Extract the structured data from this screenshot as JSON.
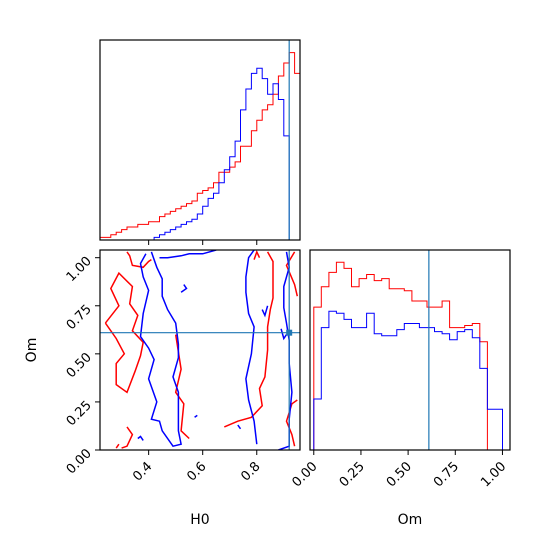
{
  "chart_data": [
    {
      "type": "histogram",
      "panel": "H0 marginal",
      "xlim": [
        0.22,
        0.96
      ],
      "bin_edges": [
        0.22,
        0.24,
        0.26,
        0.28,
        0.3,
        0.32,
        0.34,
        0.36,
        0.38,
        0.4,
        0.42,
        0.44,
        0.46,
        0.48,
        0.5,
        0.52,
        0.54,
        0.56,
        0.58,
        0.6,
        0.62,
        0.64,
        0.66,
        0.68,
        0.7,
        0.72,
        0.74,
        0.76,
        0.78,
        0.8,
        0.82,
        0.84,
        0.86,
        0.88,
        0.9,
        0.92,
        0.94,
        0.96
      ],
      "series": [
        {
          "color": "#ff0000",
          "values": [
            1,
            1,
            2,
            3,
            4,
            5,
            5,
            6,
            6,
            7,
            7,
            9,
            10,
            11,
            12,
            13,
            14,
            15,
            18,
            19,
            20,
            22,
            26,
            26,
            28,
            30,
            36,
            36,
            42,
            46,
            50,
            52,
            56,
            63,
            68,
            72,
            64
          ]
        },
        {
          "color": "#0000ff",
          "values": [
            0,
            0,
            0,
            0,
            0,
            0,
            0,
            0,
            0,
            0,
            1,
            2,
            3,
            4,
            5,
            6,
            7,
            8,
            10,
            13,
            16,
            18,
            22,
            27,
            32,
            38,
            50,
            58,
            64,
            66,
            62,
            56,
            60,
            54,
            40,
            0,
            0
          ]
        }
      ],
      "truth_line": 0.92
    },
    {
      "type": "contour",
      "panel": "H0 vs Om",
      "xlabel": "H0",
      "ylabel": "Om",
      "xlim": [
        0.22,
        0.96
      ],
      "ylim": [
        0.0,
        1.04
      ],
      "xticks": [
        "0.4",
        "0.6",
        "0.8"
      ],
      "yticks": [
        "0.00",
        "0.25",
        "0.50",
        "0.75",
        "1.00"
      ],
      "truth": [
        0.92,
        0.61
      ],
      "series": [
        {
          "color": "#ff0000",
          "contours": [
            [
              [
                0.32,
                1.03
              ],
              [
                0.33,
                1.01
              ],
              [
                0.34,
                0.96
              ],
              [
                0.38,
                0.95
              ],
              [
                0.4,
                0.98
              ],
              [
                0.41,
                0.99
              ]
            ],
            [
              [
                0.24,
                0.66
              ],
              [
                0.29,
                0.75
              ],
              [
                0.26,
                0.84
              ],
              [
                0.29,
                0.92
              ],
              [
                0.34,
                0.85
              ],
              [
                0.33,
                0.76
              ],
              [
                0.36,
                0.7
              ],
              [
                0.34,
                0.62
              ],
              [
                0.38,
                0.56
              ],
              [
                0.37,
                0.49
              ],
              [
                0.35,
                0.41
              ],
              [
                0.32,
                0.3
              ],
              [
                0.28,
                0.34
              ],
              [
                0.28,
                0.45
              ],
              [
                0.31,
                0.5
              ],
              [
                0.28,
                0.58
              ],
              [
                0.24,
                0.66
              ]
            ],
            [
              [
                0.32,
                0.12
              ],
              [
                0.34,
                0.08
              ],
              [
                0.32,
                0.02
              ],
              [
                0.3,
                0.01
              ]
            ],
            [
              [
                0.5,
                0.6
              ],
              [
                0.52,
                0.42
              ],
              [
                0.5,
                0.3
              ],
              [
                0.53,
                0.24
              ],
              [
                0.52,
                0.1
              ],
              [
                0.55,
                0.06
              ]
            ],
            [
              [
                0.68,
                0.12
              ],
              [
                0.73,
                0.15
              ],
              [
                0.78,
                0.17
              ],
              [
                0.82,
                0.23
              ],
              [
                0.81,
                0.32
              ],
              [
                0.83,
                0.38
              ],
              [
                0.84,
                0.52
              ],
              [
                0.84,
                0.64
              ],
              [
                0.85,
                0.73
              ],
              [
                0.86,
                0.79
              ],
              [
                0.86,
                0.88
              ],
              [
                0.86,
                0.98
              ],
              [
                0.84,
                1.03
              ]
            ],
            [
              [
                0.79,
                0.99
              ],
              [
                0.8,
                1.03
              ],
              [
                0.81,
                1.0
              ]
            ],
            [
              [
                0.94,
                1.03
              ],
              [
                0.91,
                0.96
              ],
              [
                0.94,
                0.86
              ],
              [
                0.95,
                0.8
              ]
            ],
            [
              [
                0.95,
                0.26
              ],
              [
                0.93,
                0.24
              ],
              [
                0.91,
                0.15
              ],
              [
                0.93,
                0.08
              ],
              [
                0.94,
                0.02
              ]
            ],
            [
              [
                0.28,
                0.01
              ],
              [
                0.29,
                0.03
              ]
            ]
          ]
        },
        {
          "color": "#0000ff",
          "contours": [
            [
              [
                0.41,
                1.03
              ],
              [
                0.43,
                0.95
              ],
              [
                0.45,
                0.89
              ],
              [
                0.45,
                0.8
              ],
              [
                0.47,
                0.73
              ],
              [
                0.5,
                0.66
              ],
              [
                0.51,
                0.55
              ],
              [
                0.51,
                0.48
              ],
              [
                0.49,
                0.38
              ],
              [
                0.51,
                0.3
              ],
              [
                0.51,
                0.18
              ],
              [
                0.51,
                0.1
              ],
              [
                0.52,
                0.03
              ],
              [
                0.49,
                0.02
              ],
              [
                0.45,
                0.1
              ],
              [
                0.44,
                0.15
              ],
              [
                0.41,
                0.16
              ],
              [
                0.43,
                0.25
              ],
              [
                0.4,
                0.37
              ],
              [
                0.42,
                0.47
              ],
              [
                0.4,
                0.53
              ],
              [
                0.37,
                0.59
              ],
              [
                0.38,
                0.71
              ],
              [
                0.4,
                0.83
              ],
              [
                0.38,
                0.9
              ],
              [
                0.37,
                0.97
              ],
              [
                0.39,
                1.02
              ]
            ],
            [
              [
                0.44,
                1.0
              ],
              [
                0.47,
                1.0
              ],
              [
                0.52,
                1.01
              ],
              [
                0.55,
                1.02
              ],
              [
                0.6,
                1.02
              ],
              [
                0.65,
                1.04
              ]
            ],
            [
              [
                0.52,
                0.82
              ],
              [
                0.54,
                0.84
              ],
              [
                0.53,
                0.86
              ]
            ],
            [
              [
                0.36,
                0.06
              ],
              [
                0.37,
                0.07
              ],
              [
                0.38,
                0.05
              ]
            ],
            [
              [
                0.57,
                0.17
              ],
              [
                0.58,
                0.18
              ]
            ],
            [
              [
                0.8,
                0.03
              ],
              [
                0.79,
                0.15
              ],
              [
                0.77,
                0.26
              ],
              [
                0.76,
                0.37
              ],
              [
                0.78,
                0.5
              ],
              [
                0.79,
                0.64
              ],
              [
                0.77,
                0.71
              ],
              [
                0.76,
                0.82
              ],
              [
                0.76,
                0.9
              ],
              [
                0.77,
                1.0
              ],
              [
                0.79,
                1.04
              ]
            ],
            [
              [
                0.91,
                1.03
              ],
              [
                0.92,
                0.95
              ],
              [
                0.9,
                0.85
              ],
              [
                0.9,
                0.74
              ],
              [
                0.91,
                0.66
              ],
              [
                0.92,
                0.57
              ],
              [
                0.92,
                0.45
              ],
              [
                0.93,
                0.3
              ],
              [
                0.92,
                0.16
              ],
              [
                0.92,
                0.02
              ],
              [
                0.88,
                0.0
              ]
            ],
            [
              [
                0.82,
                0.73
              ],
              [
                0.83,
                0.7
              ],
              [
                0.84,
                0.75
              ]
            ],
            [
              [
                0.89,
                0.63
              ],
              [
                0.9,
                0.58
              ],
              [
                0.91,
                0.6
              ]
            ],
            [
              [
                0.73,
                0.13
              ],
              [
                0.74,
                0.11
              ]
            ]
          ]
        }
      ]
    },
    {
      "type": "histogram",
      "panel": "Om marginal",
      "xlabel": "Om",
      "xlim": [
        -0.02,
        1.04
      ],
      "xticks": [
        "0.00",
        "0.25",
        "0.50",
        "0.75",
        "1.00"
      ],
      "bin_edges": [
        0.0,
        0.04,
        0.08,
        0.12,
        0.16,
        0.2,
        0.24,
        0.28,
        0.32,
        0.36,
        0.4,
        0.44,
        0.48,
        0.52,
        0.56,
        0.6,
        0.64,
        0.68,
        0.72,
        0.76,
        0.8,
        0.84,
        0.88,
        0.92,
        0.96,
        1.0
      ],
      "series": [
        {
          "color": "#ff0000",
          "values": [
            70,
            80,
            87,
            92,
            89,
            80,
            84,
            86,
            83,
            84,
            79,
            79,
            78,
            73,
            73,
            70,
            70,
            73,
            60,
            60,
            61,
            62,
            53,
            0,
            0
          ]
        },
        {
          "color": "#0000ff",
          "values": [
            25,
            60,
            68,
            67,
            64,
            60,
            60,
            67,
            57,
            56,
            56,
            59,
            62,
            62,
            60,
            60,
            58,
            57,
            54,
            58,
            59,
            55,
            40,
            20,
            20
          ]
        }
      ],
      "truth_line": 0.61
    }
  ]
}
